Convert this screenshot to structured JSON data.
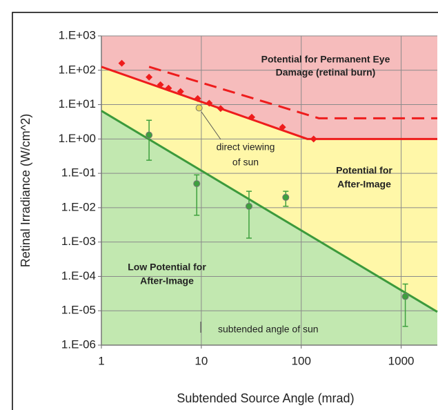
{
  "chart_data": {
    "type": "line",
    "xlabel": "Subtended Source Angle (mrad)",
    "ylabel": "Retinal Irradiance (W/cm^2)",
    "xscale": "log",
    "yscale": "log",
    "grid": true,
    "xlim": [
      1,
      2300
    ],
    "ylim": [
      1e-06,
      1000
    ],
    "xticks": [
      1,
      10,
      100,
      1000
    ],
    "yticks": [
      {
        "value": 1000,
        "label": "1.E+03"
      },
      {
        "value": 100,
        "label": "1.E+02"
      },
      {
        "value": 10,
        "label": "1.E+01"
      },
      {
        "value": 1,
        "label": "1.E+00"
      },
      {
        "value": 0.1,
        "label": "1.E-01"
      },
      {
        "value": 0.01,
        "label": "1.E-02"
      },
      {
        "value": 0.001,
        "label": "1.E-03"
      },
      {
        "value": 0.0001,
        "label": "1.E-04"
      },
      {
        "value": 1e-05,
        "label": "1.E-05"
      },
      {
        "value": 1e-06,
        "label": "1.E-06"
      }
    ],
    "background": "#f6bcbc",
    "series": [
      {
        "color": "#ee1c1c",
        "fill": "#fff7a8",
        "x": [
          1,
          115,
          2300
        ],
        "values": [
          126,
          1,
          1
        ]
      },
      {
        "color": "#ee1c1c",
        "dash": true,
        "x": [
          3,
          150,
          2300
        ],
        "values": [
          126,
          4,
          4
        ]
      },
      {
        "color": "#3c9a3c",
        "fill": "#c2e8b0",
        "x": [
          1,
          2300
        ],
        "values": [
          6.6,
          9.3e-06
        ]
      }
    ],
    "points": [
      {
        "color": "#ee1c1c",
        "marker": "diamond",
        "x": [
          1.6,
          3,
          3.9,
          4.7,
          6.2,
          9.2,
          12,
          15.6,
          32,
          65,
          133
        ],
        "values": [
          160,
          63,
          38,
          30,
          24,
          15,
          11,
          7.7,
          4.3,
          2.2,
          1
        ]
      },
      {
        "color": "#3ea03e",
        "marker": "circle",
        "x": [
          3,
          9,
          30,
          70,
          1100
        ],
        "values": [
          1.3,
          0.05,
          0.011,
          0.02,
          2.6e-05
        ],
        "low": [
          0.24,
          0.006,
          0.0013,
          0.011,
          3.5e-06
        ],
        "high": [
          3.5,
          0.09,
          0.03,
          0.03,
          6e-05
        ]
      },
      {
        "color": "#f0dc5a",
        "marker": "circle",
        "x": [
          9.5
        ],
        "values": [
          8
        ]
      }
    ],
    "annotations": {
      "damage": [
        "Potential for Permanent Eye",
        "Damage (retinal burn)"
      ],
      "after": [
        "Potential for",
        "After-Image"
      ],
      "low": [
        "Low Potential for",
        "After-Image"
      ],
      "sun_view": [
        "direct viewing",
        "of sun"
      ],
      "sun_angle": "subtended angle of sun"
    }
  }
}
